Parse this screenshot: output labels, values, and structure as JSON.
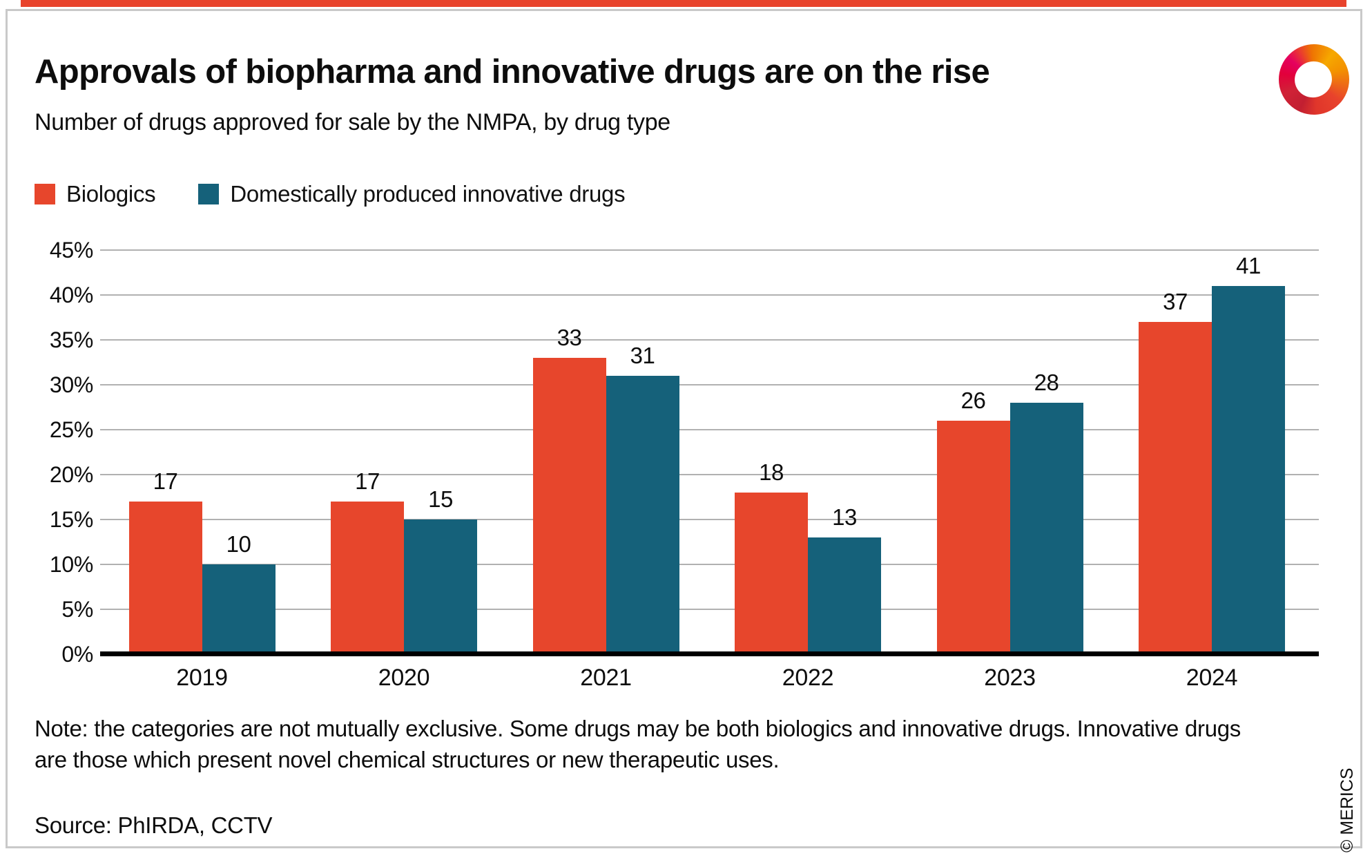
{
  "header": {
    "title": "Approvals of biopharma and innovative drugs are on the rise",
    "subtitle": "Number of drugs approved for sale by the NMPA, by drug type"
  },
  "legend": {
    "items": [
      {
        "label": "Biologics",
        "color": "#e7462c"
      },
      {
        "label": "Domestically produced innovative drugs",
        "color": "#15617a"
      }
    ]
  },
  "chart_data": {
    "type": "bar",
    "categories": [
      "2019",
      "2020",
      "2021",
      "2022",
      "2023",
      "2024"
    ],
    "series": [
      {
        "name": "Biologics",
        "color": "#e7462c",
        "values": [
          17,
          17,
          33,
          18,
          26,
          37
        ]
      },
      {
        "name": "Domestically produced innovative drugs",
        "color": "#15617a",
        "values": [
          10,
          15,
          31,
          13,
          28,
          41
        ]
      }
    ],
    "title": "Approvals of biopharma and innovative drugs are on the rise",
    "xlabel": "",
    "ylabel": "",
    "ylim": [
      0,
      45
    ],
    "y_ticks": [
      "45%",
      "40%",
      "35%",
      "30%",
      "25%",
      "20%",
      "15%",
      "10%",
      "5%",
      "0%"
    ],
    "y_tick_values": [
      45,
      40,
      35,
      30,
      25,
      20,
      15,
      10,
      5,
      0
    ],
    "grid": true,
    "legend_position": "top-left",
    "value_labels": true
  },
  "footer": {
    "note_line1": "Note: the categories are not mutually exclusive. Some drugs may be both biologics and innovative drugs. Innovative drugs",
    "note_line2": "are those which present novel chemical structures or new therapeutic uses.",
    "source": "Source: PhIRDA, CCTV",
    "copyright": "© MERICS"
  },
  "colors": {
    "accent_bar": "#e8432c",
    "biologics": "#e7462c",
    "innovative": "#15617a",
    "gridline": "#b1b1b1",
    "baseline": "#000000",
    "frame": "#c9c9c9"
  }
}
